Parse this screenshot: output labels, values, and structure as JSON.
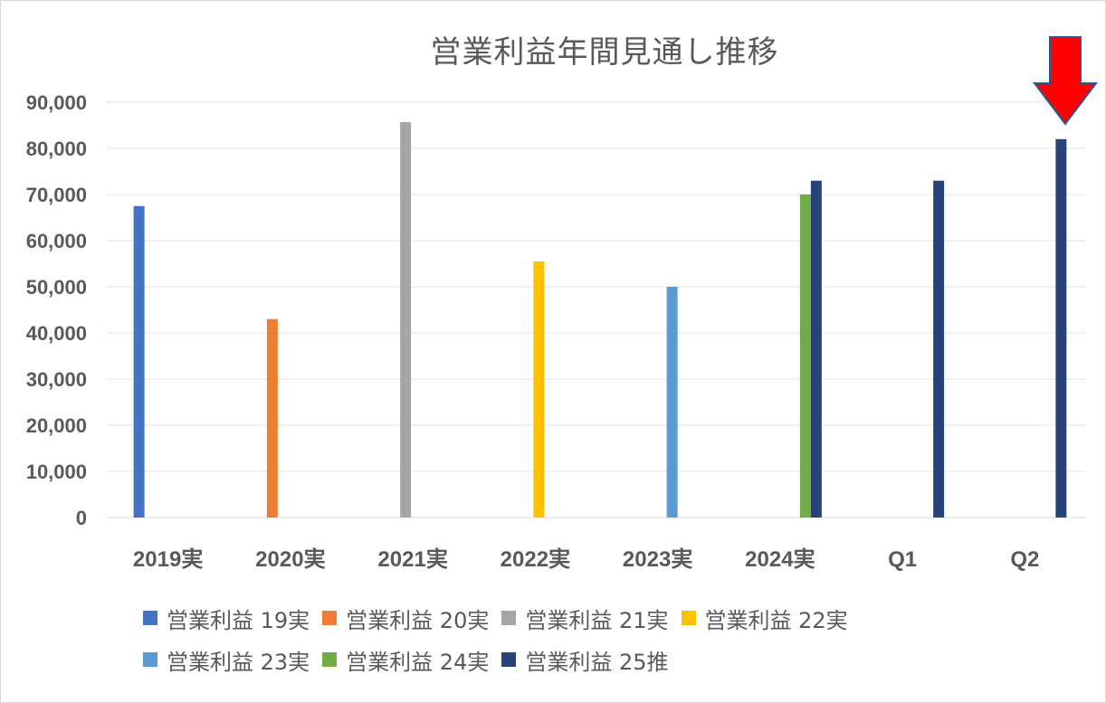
{
  "chart_data": {
    "type": "bar",
    "title": "営業利益年間見通し推移",
    "xlabel": "",
    "ylabel": "",
    "ylim": [
      0,
      90000
    ],
    "ytick_step": 10000,
    "yticks": [
      "0",
      "10,000",
      "20,000",
      "30,000",
      "40,000",
      "50,000",
      "60,000",
      "70,000",
      "80,000",
      "90,000"
    ],
    "grid": true,
    "legend_position": "bottom",
    "categories": [
      "2019実",
      "2020実",
      "2021実",
      "2022実",
      "2023実",
      "2024実",
      "Q1",
      "Q2"
    ],
    "series": [
      {
        "name": "営業利益 19実",
        "color": "#4472C4",
        "values": [
          67500,
          null,
          null,
          null,
          null,
          null,
          null,
          null
        ]
      },
      {
        "name": "営業利益 20実",
        "color": "#ED7D31",
        "values": [
          null,
          43000,
          null,
          null,
          null,
          null,
          null,
          null
        ]
      },
      {
        "name": "営業利益 21実",
        "color": "#A5A5A5",
        "values": [
          null,
          null,
          85700,
          null,
          null,
          null,
          null,
          null
        ]
      },
      {
        "name": "営業利益 22実",
        "color": "#FFC000",
        "values": [
          null,
          null,
          null,
          55500,
          null,
          null,
          null,
          null
        ]
      },
      {
        "name": "営業利益 23実",
        "color": "#5B9BD5",
        "values": [
          null,
          null,
          null,
          null,
          50000,
          null,
          null,
          null
        ]
      },
      {
        "name": "営業利益 24実",
        "color": "#70AD47",
        "values": [
          null,
          null,
          null,
          null,
          null,
          70000,
          null,
          null
        ]
      },
      {
        "name": "営業利益 25推",
        "color": "#264478",
        "values": [
          null,
          null,
          null,
          null,
          null,
          73000,
          73000,
          82000
        ]
      }
    ],
    "annotation": {
      "type": "arrow",
      "color": "#FF0000",
      "outline": "#2F5597",
      "target_category": "Q2",
      "direction": "down"
    }
  }
}
